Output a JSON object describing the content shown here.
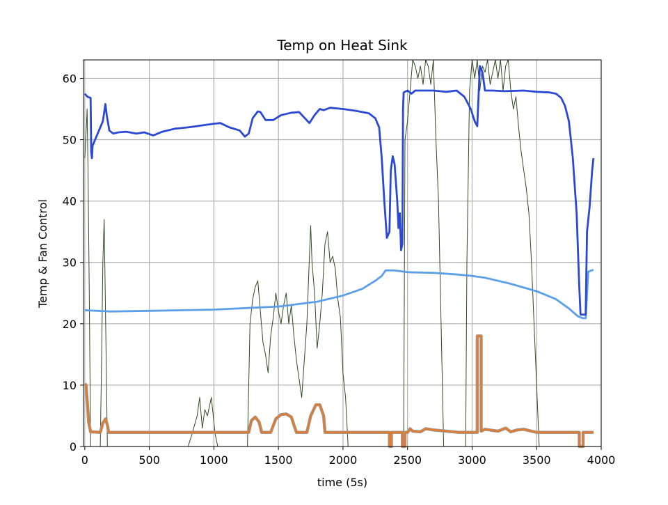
{
  "chart_data": {
    "type": "line",
    "title": "Temp on Heat Sink",
    "xlabel": "time (5s)",
    "ylabel": "Temp & Fan Control",
    "xlim": [
      -10,
      4000
    ],
    "ylim": [
      0,
      63
    ],
    "xticks": [
      0,
      500,
      1000,
      1500,
      2000,
      2500,
      3000,
      3500,
      4000
    ],
    "yticks": [
      0,
      10,
      20,
      30,
      40,
      50,
      60
    ],
    "grid": true,
    "colors": {
      "heat_sink": "#2a48d3",
      "ambient": "#5a9fe8",
      "fan": "#e07b2f",
      "fan_shadow": "#9a9a9a",
      "noisy": "#2e4a1c",
      "grid": "#b0b0b0"
    },
    "series": [
      {
        "key": "heat_sink",
        "points": [
          [
            0,
            57.5
          ],
          [
            20,
            57
          ],
          [
            45,
            56.8
          ],
          [
            50,
            48
          ],
          [
            55,
            47
          ],
          [
            60,
            49
          ],
          [
            80,
            50
          ],
          [
            100,
            51
          ],
          [
            120,
            52
          ],
          [
            140,
            53
          ],
          [
            160,
            55.8
          ],
          [
            170,
            54
          ],
          [
            190,
            51.5
          ],
          [
            220,
            51
          ],
          [
            260,
            51.2
          ],
          [
            320,
            51.3
          ],
          [
            400,
            51
          ],
          [
            460,
            51.2
          ],
          [
            530,
            50.7
          ],
          [
            600,
            51.3
          ],
          [
            700,
            51.8
          ],
          [
            800,
            52
          ],
          [
            900,
            52.3
          ],
          [
            1000,
            52.6
          ],
          [
            1050,
            52.7
          ],
          [
            1120,
            52
          ],
          [
            1200,
            51.5
          ],
          [
            1240,
            50.5
          ],
          [
            1270,
            51
          ],
          [
            1300,
            53.5
          ],
          [
            1340,
            54.6
          ],
          [
            1360,
            54.5
          ],
          [
            1400,
            53.2
          ],
          [
            1460,
            53.2
          ],
          [
            1520,
            54
          ],
          [
            1600,
            54.4
          ],
          [
            1660,
            54.5
          ],
          [
            1700,
            53.6
          ],
          [
            1740,
            52.7
          ],
          [
            1780,
            54
          ],
          [
            1820,
            55
          ],
          [
            1850,
            54.8
          ],
          [
            1900,
            55.2
          ],
          [
            2000,
            55
          ],
          [
            2100,
            54.7
          ],
          [
            2150,
            54.5
          ],
          [
            2200,
            54.3
          ],
          [
            2250,
            53.5
          ],
          [
            2280,
            52
          ],
          [
            2300,
            47
          ],
          [
            2320,
            40
          ],
          [
            2340,
            34
          ],
          [
            2360,
            35
          ],
          [
            2370,
            45
          ],
          [
            2385,
            47.3
          ],
          [
            2400,
            46
          ],
          [
            2420,
            40
          ],
          [
            2430,
            35.6
          ],
          [
            2440,
            38
          ],
          [
            2450,
            32
          ],
          [
            2460,
            33
          ],
          [
            2465,
            55
          ],
          [
            2470,
            57.7
          ],
          [
            2500,
            58
          ],
          [
            2530,
            57.5
          ],
          [
            2560,
            58
          ],
          [
            2700,
            58
          ],
          [
            2800,
            57.8
          ],
          [
            2880,
            58
          ],
          [
            2940,
            57
          ],
          [
            2990,
            55
          ],
          [
            3020,
            53
          ],
          [
            3040,
            52.2
          ],
          [
            3060,
            62
          ],
          [
            3080,
            61
          ],
          [
            3100,
            58
          ],
          [
            3160,
            58
          ],
          [
            3250,
            57.9
          ],
          [
            3400,
            58
          ],
          [
            3500,
            57.8
          ],
          [
            3600,
            57.7
          ],
          [
            3650,
            57.5
          ],
          [
            3690,
            56.8
          ],
          [
            3720,
            55.5
          ],
          [
            3750,
            53
          ],
          [
            3780,
            47
          ],
          [
            3810,
            38
          ],
          [
            3830,
            26
          ],
          [
            3840,
            21.5
          ],
          [
            3880,
            21.5
          ],
          [
            3890,
            35
          ],
          [
            3910,
            39
          ],
          [
            3930,
            45
          ],
          [
            3940,
            47
          ]
        ]
      },
      {
        "key": "ambient",
        "points": [
          [
            0,
            22.2
          ],
          [
            100,
            22.1
          ],
          [
            200,
            22
          ],
          [
            500,
            22.1
          ],
          [
            1000,
            22.3
          ],
          [
            1500,
            22.8
          ],
          [
            1800,
            23.6
          ],
          [
            2000,
            24.6
          ],
          [
            2150,
            25.7
          ],
          [
            2250,
            27
          ],
          [
            2300,
            27.8
          ],
          [
            2330,
            28.7
          ],
          [
            2400,
            28.7
          ],
          [
            2500,
            28.4
          ],
          [
            2700,
            28.3
          ],
          [
            2900,
            28
          ],
          [
            3000,
            27.8
          ],
          [
            3100,
            27.5
          ],
          [
            3300,
            26.5
          ],
          [
            3500,
            25.3
          ],
          [
            3650,
            24
          ],
          [
            3750,
            22.5
          ],
          [
            3820,
            21.2
          ],
          [
            3860,
            20.9
          ],
          [
            3880,
            20.9
          ],
          [
            3900,
            28.5
          ],
          [
            3940,
            28.8
          ]
        ]
      },
      {
        "key": "fan",
        "points": [
          [
            0,
            10.2
          ],
          [
            10,
            10
          ],
          [
            30,
            4
          ],
          [
            45,
            2.4
          ],
          [
            120,
            2.3
          ],
          [
            140,
            3.8
          ],
          [
            160,
            4.5
          ],
          [
            175,
            3.5
          ],
          [
            185,
            2.3
          ],
          [
            1270,
            2.3
          ],
          [
            1290,
            4.2
          ],
          [
            1320,
            4.8
          ],
          [
            1350,
            4
          ],
          [
            1370,
            2.3
          ],
          [
            1440,
            2.3
          ],
          [
            1480,
            4.5
          ],
          [
            1520,
            5.2
          ],
          [
            1560,
            5.3
          ],
          [
            1600,
            4.8
          ],
          [
            1620,
            3.5
          ],
          [
            1640,
            2.3
          ],
          [
            1720,
            2.3
          ],
          [
            1750,
            5
          ],
          [
            1790,
            6.8
          ],
          [
            1820,
            6.8
          ],
          [
            1850,
            5
          ],
          [
            1860,
            2.3
          ],
          [
            2360,
            2.3
          ],
          [
            2360,
            0
          ],
          [
            2375,
            0
          ],
          [
            2375,
            2.3
          ],
          [
            2460,
            2.3
          ],
          [
            2460,
            0
          ],
          [
            2480,
            0
          ],
          [
            2480,
            2.3
          ],
          [
            2500,
            2.3
          ],
          [
            2520,
            2.9
          ],
          [
            2540,
            2.5
          ],
          [
            2600,
            2.4
          ],
          [
            2640,
            2.9
          ],
          [
            2700,
            2.7
          ],
          [
            2800,
            2.5
          ],
          [
            2900,
            2.3
          ],
          [
            3040,
            2.3
          ],
          [
            3040,
            18
          ],
          [
            3070,
            18
          ],
          [
            3070,
            2.5
          ],
          [
            3100,
            2.8
          ],
          [
            3200,
            2.5
          ],
          [
            3260,
            3
          ],
          [
            3300,
            2.4
          ],
          [
            3350,
            2.7
          ],
          [
            3400,
            2.8
          ],
          [
            3460,
            2.5
          ],
          [
            3500,
            2.3
          ],
          [
            3830,
            2.3
          ],
          [
            3830,
            0
          ],
          [
            3860,
            0
          ],
          [
            3860,
            2.3
          ],
          [
            3940,
            2.3
          ]
        ]
      },
      {
        "key": "noisy",
        "points": [
          [
            0,
            47
          ],
          [
            12,
            52
          ],
          [
            18,
            55
          ],
          [
            25,
            45
          ],
          [
            35,
            25
          ],
          [
            45,
            0
          ],
          [
            120,
            0
          ],
          [
            130,
            14
          ],
          [
            140,
            30
          ],
          [
            150,
            37
          ],
          [
            165,
            15
          ],
          [
            175,
            0
          ],
          [
            800,
            0
          ],
          [
            830,
            2
          ],
          [
            870,
            5
          ],
          [
            890,
            8
          ],
          [
            910,
            3
          ],
          [
            930,
            6
          ],
          [
            950,
            5
          ],
          [
            980,
            8
          ],
          [
            1010,
            2
          ],
          [
            1030,
            0
          ],
          [
            1260,
            0
          ],
          [
            1280,
            20
          ],
          [
            1300,
            24
          ],
          [
            1320,
            26
          ],
          [
            1340,
            27
          ],
          [
            1360,
            22
          ],
          [
            1380,
            17
          ],
          [
            1400,
            15
          ],
          [
            1420,
            12
          ],
          [
            1440,
            18
          ],
          [
            1460,
            21
          ],
          [
            1480,
            25
          ],
          [
            1500,
            22
          ],
          [
            1520,
            20
          ],
          [
            1540,
            23
          ],
          [
            1560,
            25
          ],
          [
            1580,
            20
          ],
          [
            1600,
            23
          ],
          [
            1620,
            18
          ],
          [
            1640,
            14
          ],
          [
            1660,
            11
          ],
          [
            1680,
            8
          ],
          [
            1700,
            14
          ],
          [
            1720,
            20
          ],
          [
            1740,
            31
          ],
          [
            1750,
            36
          ],
          [
            1760,
            30
          ],
          [
            1780,
            25
          ],
          [
            1800,
            16
          ],
          [
            1820,
            20
          ],
          [
            1840,
            25
          ],
          [
            1860,
            33
          ],
          [
            1880,
            35
          ],
          [
            1900,
            30
          ],
          [
            1920,
            31
          ],
          [
            1940,
            29
          ],
          [
            1960,
            24
          ],
          [
            1980,
            21
          ],
          [
            2000,
            12
          ],
          [
            2020,
            8
          ],
          [
            2040,
            0
          ],
          [
            2470,
            0
          ],
          [
            2480,
            50
          ],
          [
            2500,
            53
          ],
          [
            2520,
            58
          ],
          [
            2540,
            63
          ],
          [
            2560,
            62
          ],
          [
            2580,
            60
          ],
          [
            2600,
            62
          ],
          [
            2620,
            59
          ],
          [
            2640,
            63
          ],
          [
            2660,
            62
          ],
          [
            2680,
            59
          ],
          [
            2700,
            63
          ],
          [
            2720,
            50
          ],
          [
            2740,
            40
          ],
          [
            2760,
            20
          ],
          [
            2780,
            0
          ],
          [
            2950,
            0
          ],
          [
            2960,
            30
          ],
          [
            2980,
            58
          ],
          [
            3000,
            63
          ],
          [
            3020,
            60
          ],
          [
            3040,
            63
          ],
          [
            3060,
            58
          ],
          [
            3080,
            62
          ],
          [
            3100,
            61
          ],
          [
            3120,
            63
          ],
          [
            3140,
            59
          ],
          [
            3160,
            61
          ],
          [
            3180,
            63
          ],
          [
            3200,
            60
          ],
          [
            3220,
            63
          ],
          [
            3240,
            58
          ],
          [
            3260,
            62
          ],
          [
            3280,
            63
          ],
          [
            3300,
            58
          ],
          [
            3320,
            55
          ],
          [
            3340,
            57
          ],
          [
            3360,
            52
          ],
          [
            3380,
            48
          ],
          [
            3400,
            45
          ],
          [
            3420,
            42
          ],
          [
            3440,
            38
          ],
          [
            3460,
            30
          ],
          [
            3480,
            20
          ],
          [
            3500,
            10
          ],
          [
            3520,
            0
          ]
        ]
      }
    ]
  }
}
